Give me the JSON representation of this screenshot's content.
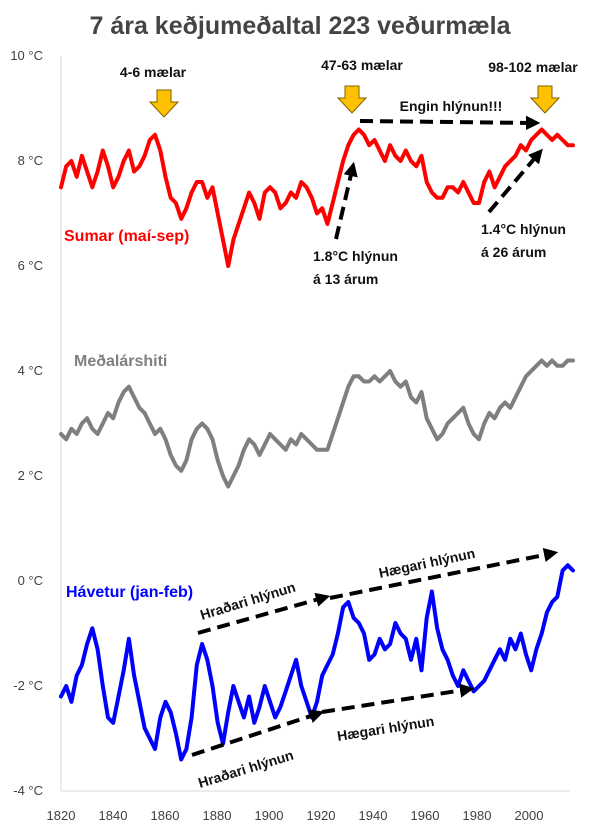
{
  "chart_data": {
    "type": "line",
    "title": "7 ára keðjumeðaltal 223 veðurmæla",
    "xlabel": "",
    "ylabel": "",
    "xlim": [
      1820,
      2016
    ],
    "ylim": [
      -4,
      10
    ],
    "x_ticks": [
      "1820",
      "1840",
      "1860",
      "1880",
      "1900",
      "1920",
      "1940",
      "1960",
      "1980",
      "2000"
    ],
    "y_ticks": [
      "10 °C",
      "8 °C",
      "6 °C",
      "4 °C",
      "2 °C",
      "0 °C",
      "-2 °C",
      "-4 °C"
    ],
    "grid": false,
    "colors": {
      "summer": "#ff0000",
      "annual": "#7f7f7f",
      "winter": "#0000ff",
      "arrow": "#ffc000"
    },
    "series": [
      {
        "name": "Sumar (maí-sep)",
        "x": [
          1820,
          1822,
          1824,
          1826,
          1828,
          1830,
          1832,
          1834,
          1836,
          1838,
          1840,
          1842,
          1844,
          1846,
          1848,
          1850,
          1852,
          1854,
          1856,
          1858,
          1860,
          1862,
          1864,
          1866,
          1868,
          1870,
          1872,
          1874,
          1876,
          1878,
          1880,
          1882,
          1884,
          1886,
          1888,
          1890,
          1892,
          1894,
          1896,
          1898,
          1900,
          1902,
          1904,
          1906,
          1908,
          1910,
          1912,
          1914,
          1916,
          1918,
          1920,
          1922,
          1924,
          1926,
          1928,
          1930,
          1932,
          1934,
          1936,
          1938,
          1940,
          1942,
          1944,
          1946,
          1948,
          1950,
          1952,
          1954,
          1956,
          1958,
          1960,
          1962,
          1964,
          1966,
          1968,
          1970,
          1972,
          1974,
          1976,
          1978,
          1980,
          1982,
          1984,
          1986,
          1988,
          1990,
          1992,
          1994,
          1996,
          1998,
          2000,
          2002,
          2004,
          2006,
          2008,
          2010,
          2012,
          2014,
          2016
        ],
        "values": [
          7.5,
          7.9,
          8.0,
          7.7,
          8.1,
          7.8,
          7.5,
          7.8,
          8.2,
          7.9,
          7.5,
          7.7,
          8.0,
          8.2,
          7.8,
          7.9,
          8.1,
          8.4,
          8.5,
          8.2,
          7.7,
          7.3,
          7.2,
          6.9,
          7.1,
          7.4,
          7.6,
          7.6,
          7.3,
          7.5,
          7.0,
          6.5,
          6.0,
          6.5,
          6.8,
          7.1,
          7.4,
          7.2,
          6.9,
          7.4,
          7.5,
          7.4,
          7.1,
          7.2,
          7.4,
          7.3,
          7.6,
          7.5,
          7.3,
          7.0,
          7.1,
          6.8,
          7.2,
          7.6,
          8.0,
          8.3,
          8.5,
          8.6,
          8.5,
          8.3,
          8.4,
          8.2,
          8.0,
          8.3,
          8.1,
          8.0,
          8.2,
          8.0,
          7.9,
          8.1,
          7.6,
          7.4,
          7.3,
          7.3,
          7.5,
          7.5,
          7.4,
          7.6,
          7.4,
          7.2,
          7.2,
          7.6,
          7.8,
          7.5,
          7.7,
          7.9,
          8.0,
          8.1,
          8.3,
          8.2,
          8.4,
          8.5,
          8.6,
          8.5,
          8.4,
          8.5,
          8.4,
          8.3,
          8.3
        ]
      },
      {
        "name": "Meðalárshiti",
        "x": [
          1820,
          1822,
          1824,
          1826,
          1828,
          1830,
          1832,
          1834,
          1836,
          1838,
          1840,
          1842,
          1844,
          1846,
          1848,
          1850,
          1852,
          1854,
          1856,
          1858,
          1860,
          1862,
          1864,
          1866,
          1868,
          1870,
          1872,
          1874,
          1876,
          1878,
          1880,
          1882,
          1884,
          1886,
          1888,
          1890,
          1892,
          1894,
          1896,
          1898,
          1900,
          1902,
          1904,
          1906,
          1908,
          1910,
          1912,
          1914,
          1916,
          1918,
          1920,
          1922,
          1924,
          1926,
          1928,
          1930,
          1932,
          1934,
          1936,
          1938,
          1940,
          1942,
          1944,
          1946,
          1948,
          1950,
          1952,
          1954,
          1956,
          1958,
          1960,
          1962,
          1964,
          1966,
          1968,
          1970,
          1972,
          1974,
          1976,
          1978,
          1980,
          1982,
          1984,
          1986,
          1988,
          1990,
          1992,
          1994,
          1996,
          1998,
          2000,
          2002,
          2004,
          2006,
          2008,
          2010,
          2012,
          2014,
          2016
        ],
        "values": [
          2.8,
          2.7,
          2.9,
          2.8,
          3.0,
          3.1,
          2.9,
          2.8,
          3.0,
          3.2,
          3.1,
          3.4,
          3.6,
          3.7,
          3.5,
          3.3,
          3.2,
          3.0,
          2.8,
          2.9,
          2.7,
          2.4,
          2.2,
          2.1,
          2.3,
          2.7,
          2.9,
          3.0,
          2.9,
          2.7,
          2.3,
          2.0,
          1.8,
          2.0,
          2.2,
          2.5,
          2.7,
          2.6,
          2.4,
          2.6,
          2.8,
          2.7,
          2.6,
          2.5,
          2.7,
          2.6,
          2.8,
          2.7,
          2.6,
          2.5,
          2.5,
          2.5,
          2.8,
          3.1,
          3.4,
          3.7,
          3.9,
          3.9,
          3.8,
          3.8,
          3.9,
          3.8,
          3.9,
          4.0,
          3.8,
          3.7,
          3.8,
          3.5,
          3.4,
          3.6,
          3.1,
          2.9,
          2.7,
          2.8,
          3.0,
          3.1,
          3.2,
          3.3,
          3.0,
          2.8,
          2.7,
          3.0,
          3.2,
          3.1,
          3.3,
          3.4,
          3.3,
          3.5,
          3.7,
          3.9,
          4.0,
          4.1,
          4.2,
          4.1,
          4.2,
          4.1,
          4.1,
          4.2,
          4.2
        ]
      },
      {
        "name": "Hávetur (jan-feb)",
        "x": [
          1820,
          1822,
          1824,
          1826,
          1828,
          1830,
          1832,
          1834,
          1836,
          1838,
          1840,
          1842,
          1844,
          1846,
          1848,
          1850,
          1852,
          1854,
          1856,
          1858,
          1860,
          1862,
          1864,
          1866,
          1868,
          1870,
          1872,
          1874,
          1876,
          1878,
          1880,
          1882,
          1884,
          1886,
          1888,
          1890,
          1892,
          1894,
          1896,
          1898,
          1900,
          1902,
          1904,
          1906,
          1908,
          1910,
          1912,
          1914,
          1916,
          1918,
          1920,
          1922,
          1924,
          1926,
          1928,
          1930,
          1932,
          1934,
          1936,
          1938,
          1940,
          1942,
          1944,
          1946,
          1948,
          1950,
          1952,
          1954,
          1956,
          1958,
          1960,
          1962,
          1964,
          1966,
          1968,
          1970,
          1972,
          1974,
          1976,
          1978,
          1980,
          1982,
          1984,
          1986,
          1988,
          1990,
          1992,
          1994,
          1996,
          1998,
          2000,
          2002,
          2004,
          2006,
          2008,
          2010,
          2012,
          2014,
          2016
        ],
        "values": [
          -2.2,
          -2.0,
          -2.3,
          -1.8,
          -1.6,
          -1.2,
          -0.9,
          -1.3,
          -2.0,
          -2.6,
          -2.7,
          -2.2,
          -1.7,
          -1.1,
          -1.8,
          -2.3,
          -2.8,
          -3.0,
          -3.2,
          -2.6,
          -2.3,
          -2.5,
          -2.9,
          -3.4,
          -3.2,
          -2.6,
          -1.6,
          -1.2,
          -1.5,
          -2.0,
          -2.7,
          -3.1,
          -2.5,
          -2.0,
          -2.3,
          -2.6,
          -2.2,
          -2.7,
          -2.4,
          -2.0,
          -2.3,
          -2.6,
          -2.4,
          -2.1,
          -1.8,
          -1.5,
          -2.0,
          -2.3,
          -2.6,
          -2.3,
          -1.8,
          -1.6,
          -1.4,
          -1.0,
          -0.5,
          -0.4,
          -0.7,
          -0.8,
          -1.0,
          -1.5,
          -1.4,
          -1.1,
          -1.3,
          -1.2,
          -0.8,
          -1.0,
          -1.1,
          -1.5,
          -1.1,
          -1.7,
          -0.7,
          -0.2,
          -0.9,
          -1.3,
          -1.5,
          -1.8,
          -2.0,
          -1.7,
          -1.9,
          -2.1,
          -2.0,
          -1.9,
          -1.7,
          -1.5,
          -1.3,
          -1.5,
          -1.1,
          -1.3,
          -1.0,
          -1.4,
          -1.7,
          -1.3,
          -1.0,
          -0.6,
          -0.4,
          -0.3,
          0.2,
          0.3,
          0.2
        ]
      }
    ],
    "series_labels": [
      "Sumar (maí-sep)",
      "Meðalárshiti",
      "Hávetur (jan-feb)"
    ],
    "annotations": {
      "m1": "4-6 mælar",
      "m2": "47-63 mælar",
      "m3": "98-102 mælar",
      "engin": "Engin hlýnun!!!",
      "h13a": "1.8°C hlýnun",
      "h13b": "á 13 árum",
      "h26a": "1.4°C hlýnun",
      "h26b": "á 26 árum",
      "hr_top": "Hraðari hlýnun",
      "hg_top": "Hægari hlýnun",
      "hr_bot": "Hraðari hlýnun",
      "hg_bot": "Hægari hlýnun"
    }
  }
}
